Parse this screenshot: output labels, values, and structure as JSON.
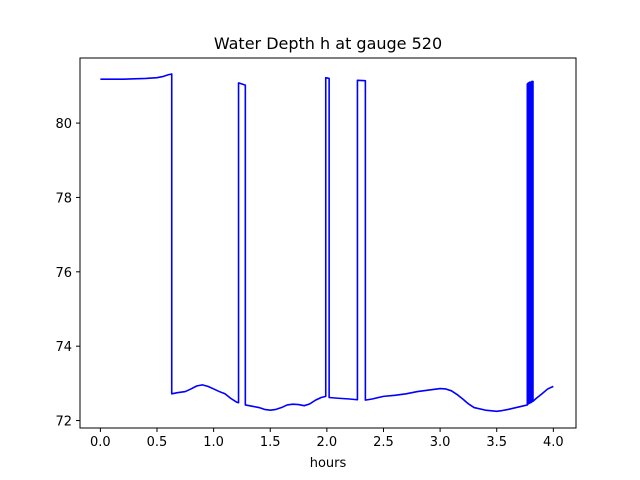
{
  "chart_data": {
    "type": "line",
    "title": "Water Depth h at gauge 520",
    "xlabel": "hours",
    "ylabel": "",
    "xlim": [
      -0.18,
      4.2
    ],
    "ylim": [
      71.8,
      81.75
    ],
    "xticks": [
      0.0,
      0.5,
      1.0,
      1.5,
      2.0,
      2.5,
      3.0,
      3.5,
      4.0
    ],
    "xtick_labels": [
      "0.0",
      "0.5",
      "1.0",
      "1.5",
      "2.0",
      "2.5",
      "3.0",
      "3.5",
      "4.0"
    ],
    "yticks": [
      72,
      74,
      76,
      78,
      80
    ],
    "ytick_labels": [
      "72",
      "74",
      "76",
      "78",
      "80"
    ],
    "grid": false,
    "legend": "none",
    "series": [
      {
        "color": "#0000ff",
        "x": [
          0.0,
          0.1,
          0.2,
          0.3,
          0.4,
          0.5,
          0.55,
          0.6,
          0.63,
          0.63,
          0.68,
          0.75,
          0.8,
          0.85,
          0.9,
          0.95,
          1.0,
          1.05,
          1.1,
          1.15,
          1.2,
          1.22,
          1.22,
          1.28,
          1.28,
          1.35,
          1.4,
          1.45,
          1.5,
          1.55,
          1.6,
          1.65,
          1.7,
          1.75,
          1.8,
          1.85,
          1.9,
          1.95,
          1.99,
          1.99,
          2.02,
          2.02,
          2.1,
          2.2,
          2.27,
          2.27,
          2.34,
          2.34,
          2.4,
          2.5,
          2.6,
          2.7,
          2.8,
          2.9,
          3.0,
          3.05,
          3.1,
          3.15,
          3.2,
          3.25,
          3.3,
          3.4,
          3.5,
          3.55,
          3.6,
          3.7,
          3.77,
          3.77,
          3.78,
          3.78,
          3.79,
          3.79,
          3.8,
          3.8,
          3.81,
          3.81,
          3.82,
          3.82,
          3.85,
          3.9,
          3.95,
          4.0
        ],
        "y": [
          81.18,
          81.18,
          81.18,
          81.19,
          81.2,
          81.22,
          81.25,
          81.3,
          81.32,
          72.72,
          72.75,
          72.78,
          72.85,
          72.93,
          72.96,
          72.92,
          72.85,
          72.78,
          72.72,
          72.6,
          72.5,
          72.48,
          81.08,
          81.02,
          72.42,
          72.38,
          72.35,
          72.3,
          72.28,
          72.3,
          72.35,
          72.42,
          72.44,
          72.43,
          72.4,
          72.45,
          72.55,
          72.62,
          72.65,
          81.22,
          81.2,
          72.62,
          72.6,
          72.58,
          72.56,
          81.15,
          81.14,
          72.55,
          72.58,
          72.65,
          72.68,
          72.72,
          72.78,
          72.82,
          72.86,
          72.85,
          72.8,
          72.7,
          72.58,
          72.45,
          72.35,
          72.28,
          72.25,
          72.27,
          72.3,
          72.37,
          72.42,
          81.05,
          81.08,
          72.45,
          72.47,
          81.1,
          81.1,
          72.48,
          72.5,
          81.12,
          81.12,
          72.52,
          72.6,
          72.72,
          72.85,
          72.92
        ]
      }
    ]
  }
}
